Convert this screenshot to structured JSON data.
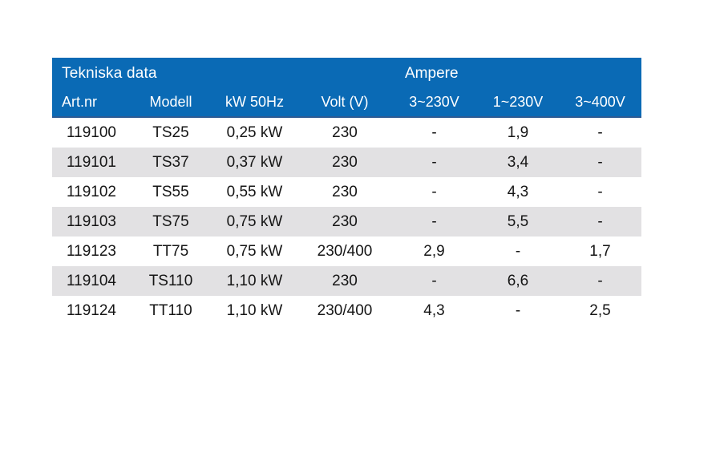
{
  "table": {
    "title": "Tekniska data",
    "ampere_group_label": "Ampere",
    "columns": [
      "Art.nr",
      "Modell",
      "kW 50Hz",
      "Volt (V)",
      "3~230V",
      "1~230V",
      "3~400V"
    ],
    "rows": [
      [
        "119100",
        "TS25",
        "0,25 kW",
        "230",
        "-",
        "1,9",
        "-"
      ],
      [
        "119101",
        "TS37",
        "0,37 kW",
        "230",
        "-",
        "3,4",
        "-"
      ],
      [
        "119102",
        "TS55",
        "0,55 kW",
        "230",
        "-",
        "4,3",
        "-"
      ],
      [
        "119103",
        "TS75",
        "0,75 kW",
        "230",
        "-",
        "5,5",
        "-"
      ],
      [
        "119123",
        "TT75",
        "0,75 kW",
        "230/400",
        "2,9",
        "-",
        "1,7"
      ],
      [
        "119104",
        "TS110",
        "1,10 kW",
        "230",
        "-",
        "6,6",
        "-"
      ],
      [
        "119124",
        "TT110",
        "1,10 kW",
        "230/400",
        "4,3",
        "-",
        "2,5"
      ]
    ],
    "colors": {
      "header_bg": "#0a6ab5",
      "header_text": "#ffffff",
      "row_alt_bg": "#e2e1e3",
      "body_text": "#151515",
      "page_bg": "#ffffff"
    }
  }
}
